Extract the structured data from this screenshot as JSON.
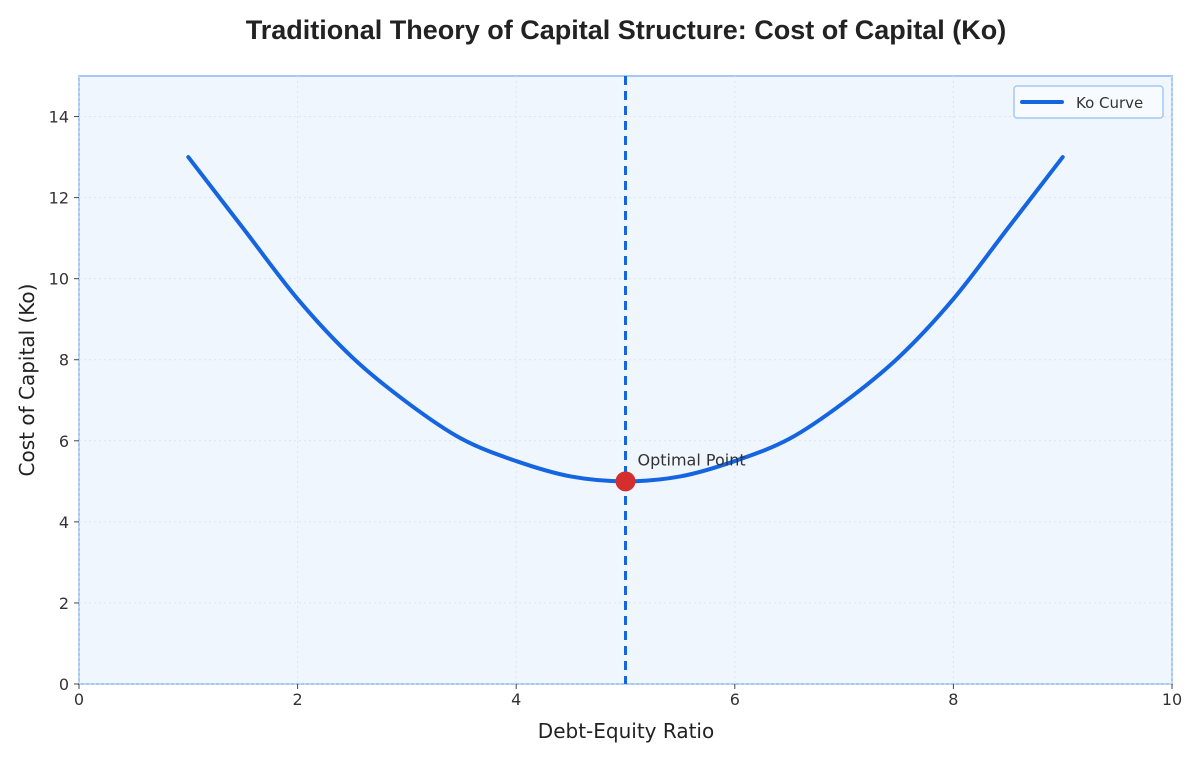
{
  "chart_data": {
    "type": "line",
    "title": "Traditional Theory of Capital Structure: Cost of Capital (Ko)",
    "xlabel": "Debt-Equity Ratio",
    "ylabel": "Cost of Capital (Ko)",
    "xlim": [
      0,
      10
    ],
    "ylim": [
      0,
      15
    ],
    "xticks": [
      0,
      2,
      4,
      6,
      8,
      10
    ],
    "yticks": [
      0,
      2,
      4,
      6,
      8,
      10,
      12,
      14
    ],
    "grid": true,
    "legend_position": "top-right",
    "series": [
      {
        "name": "Ko Curve",
        "color": "#1565e0",
        "x": [
          1.0,
          1.5,
          2.0,
          2.5,
          3.0,
          3.5,
          4.0,
          4.5,
          5.0,
          5.5,
          6.0,
          6.5,
          7.0,
          7.5,
          8.0,
          8.5,
          9.0
        ],
        "y": [
          13.0,
          11.25,
          9.5,
          8.06,
          6.95,
          6.05,
          5.5,
          5.12,
          5.0,
          5.12,
          5.5,
          6.05,
          6.95,
          8.06,
          9.5,
          11.25,
          13.0
        ]
      }
    ],
    "vline": {
      "x": 5,
      "color": "#1565e0",
      "style": "dashed"
    },
    "optimal_point": {
      "x": 5,
      "y": 5,
      "color": "#d32f2f",
      "label": "Optimal Point"
    }
  }
}
